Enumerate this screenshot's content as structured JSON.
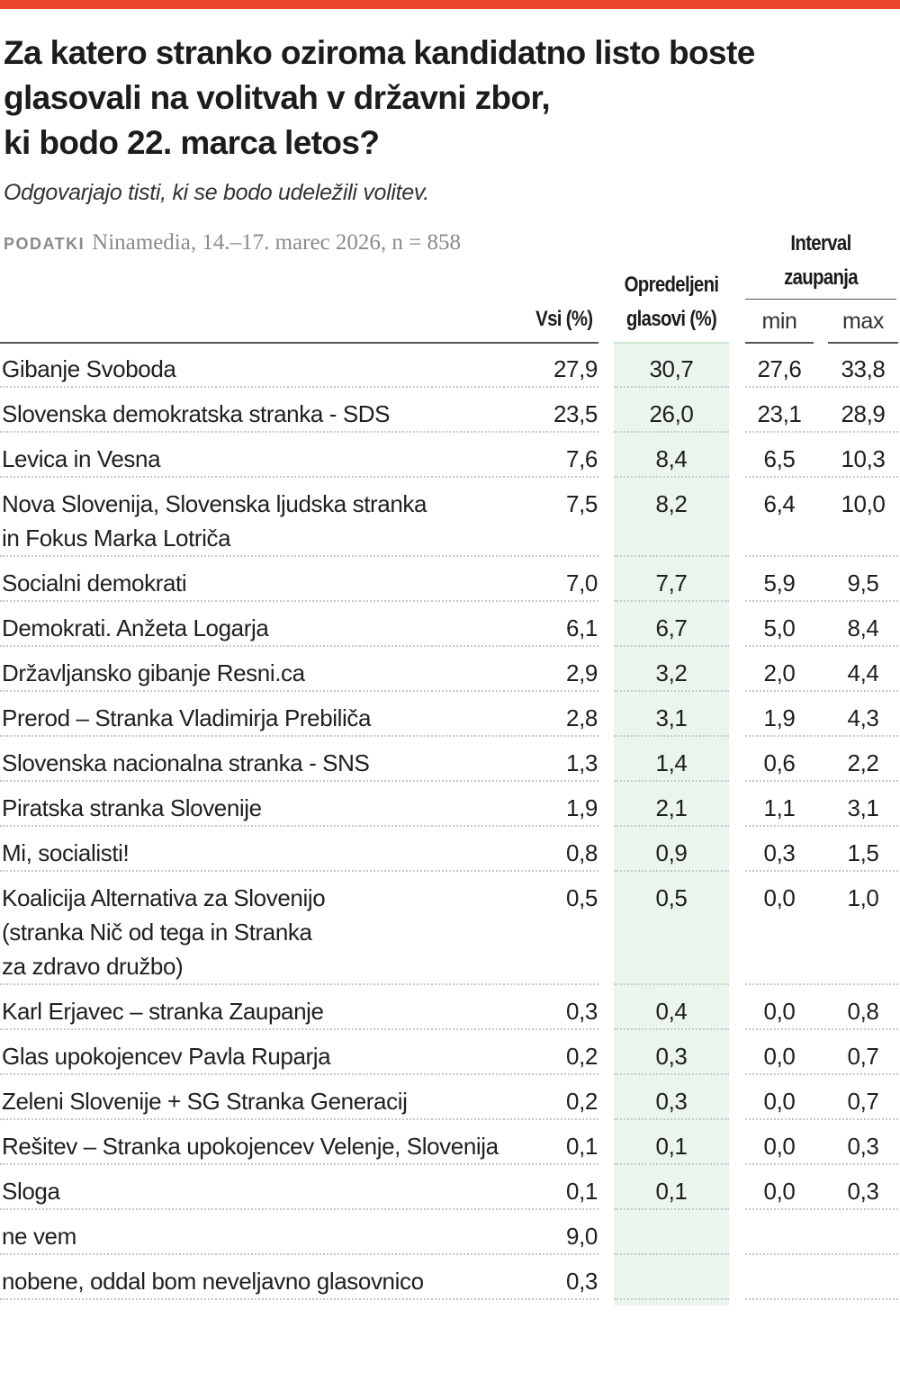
{
  "accent_color": "#e8452c",
  "highlight_color": "#eaf5ec",
  "title": [
    "Za katero stranko oziroma kandidatno listo boste",
    "glasovali na volitvah v državni zbor,",
    "ki bodo 22. marca letos?"
  ],
  "subtitle": "Odgovarjajo tisti, ki se bodo udeležili volitev.",
  "source": {
    "label": "PODATKI",
    "text": "Ninamedia, 14.–17. marec 2026, n = 858"
  },
  "headers": {
    "vsi": "Vsi (%)",
    "opredeljeni_1": "Opredeljeni",
    "opredeljeni_2": "glasovi (%)",
    "interval_1": "Interval",
    "interval_2": "zaupanja",
    "min": "min",
    "max": "max"
  },
  "chart_data": {
    "type": "table",
    "columns": [
      "",
      "Vsi (%)",
      "Opredeljeni glasovi (%)",
      "Interval zaupanja min",
      "Interval zaupanja max"
    ],
    "rows": [
      {
        "label": [
          "Gibanje Svoboda"
        ],
        "vsi": "27,9",
        "opr": "30,7",
        "min": "27,6",
        "max": "33,8"
      },
      {
        "label": [
          "Slovenska demokratska stranka - SDS"
        ],
        "vsi": "23,5",
        "opr": "26,0",
        "min": "23,1",
        "max": "28,9"
      },
      {
        "label": [
          "Levica in Vesna"
        ],
        "vsi": "7,6",
        "opr": "8,4",
        "min": "6,5",
        "max": "10,3"
      },
      {
        "label": [
          "Nova Slovenija, Slovenska ljudska stranka",
          "in Fokus Marka Lotriča"
        ],
        "vsi": "7,5",
        "opr": "8,2",
        "min": "6,4",
        "max": "10,0"
      },
      {
        "label": [
          "Socialni demokrati"
        ],
        "vsi": "7,0",
        "opr": "7,7",
        "min": "5,9",
        "max": "9,5"
      },
      {
        "label": [
          "Demokrati. Anžeta Logarja"
        ],
        "vsi": "6,1",
        "opr": "6,7",
        "min": "5,0",
        "max": "8,4"
      },
      {
        "label": [
          "Državljansko gibanje Resni.ca"
        ],
        "vsi": "2,9",
        "opr": "3,2",
        "min": "2,0",
        "max": "4,4"
      },
      {
        "label": [
          "Prerod – Stranka Vladimirja Prebiliča"
        ],
        "vsi": "2,8",
        "opr": "3,1",
        "min": "1,9",
        "max": "4,3"
      },
      {
        "label": [
          "Slovenska nacionalna stranka - SNS"
        ],
        "vsi": "1,3",
        "opr": "1,4",
        "min": "0,6",
        "max": "2,2"
      },
      {
        "label": [
          "Piratska stranka Slovenije"
        ],
        "vsi": "1,9",
        "opr": "2,1",
        "min": "1,1",
        "max": "3,1"
      },
      {
        "label": [
          "Mi, socialisti!"
        ],
        "vsi": "0,8",
        "opr": "0,9",
        "min": "0,3",
        "max": "1,5"
      },
      {
        "label": [
          "Koalicija Alternativa za Slovenijo",
          "(stranka Nič od tega in Stranka",
          "za zdravo družbo)"
        ],
        "vsi": "0,5",
        "opr": "0,5",
        "min": "0,0",
        "max": "1,0"
      },
      {
        "label": [
          "Karl Erjavec – stranka Zaupanje"
        ],
        "vsi": "0,3",
        "opr": "0,4",
        "min": "0,0",
        "max": "0,8"
      },
      {
        "label": [
          "Glas upokojencev Pavla Ruparja"
        ],
        "vsi": "0,2",
        "opr": "0,3",
        "min": "0,0",
        "max": "0,7"
      },
      {
        "label": [
          "Zeleni Slovenije + SG Stranka Generacij"
        ],
        "vsi": "0,2",
        "opr": "0,3",
        "min": "0,0",
        "max": "0,7"
      },
      {
        "label": [
          "Rešitev – Stranka upokojencev Velenje, Slovenija"
        ],
        "vsi": "0,1",
        "opr": "0,1",
        "min": "0,0",
        "max": "0,3"
      },
      {
        "label": [
          "Sloga"
        ],
        "vsi": "0,1",
        "opr": "0,1",
        "min": "0,0",
        "max": "0,3"
      },
      {
        "label": [
          "ne vem"
        ],
        "vsi": "9,0",
        "opr": "",
        "min": "",
        "max": ""
      },
      {
        "label": [
          "nobene, oddal bom neveljavno glasovnico"
        ],
        "vsi": "0,3",
        "opr": "",
        "min": "",
        "max": ""
      }
    ]
  }
}
